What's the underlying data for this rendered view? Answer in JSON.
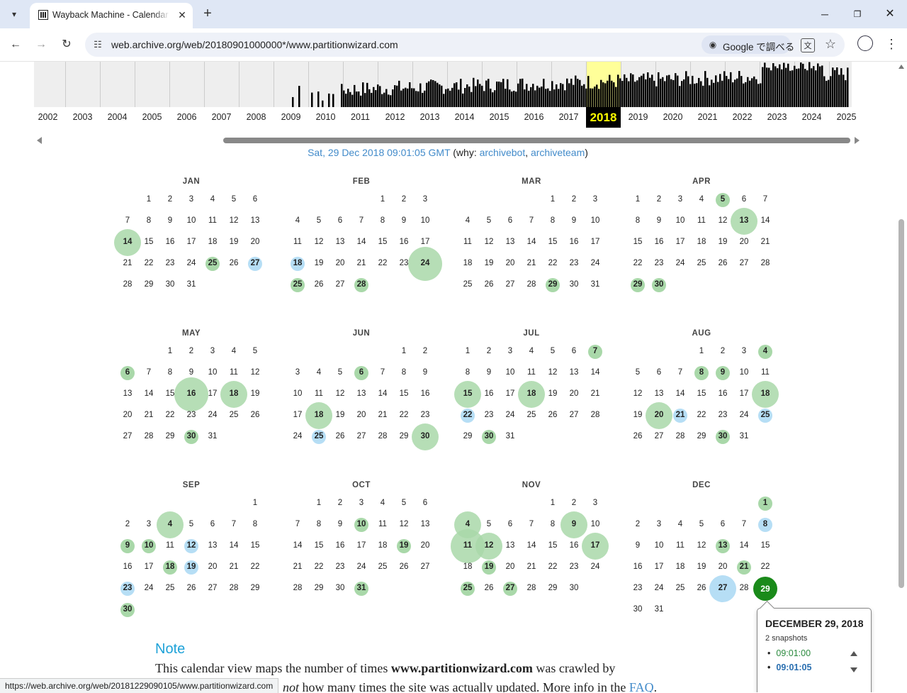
{
  "browser": {
    "tab_title": "Wayback Machine - Calendar of",
    "url": "web.archive.org/web/20180901000000*/www.partitionwizard.com",
    "lens_label": "Google で調べる",
    "status_url": "https://web.archive.org/web/20181229090105/www.partitionwizard.com"
  },
  "icons": {
    "tab_list": "▾",
    "close": "✕",
    "new_tab": "+",
    "minimize": "─",
    "maximize": "❐",
    "back": "←",
    "forward": "→",
    "reload": "↻",
    "site_info": "☷",
    "lens": "◉",
    "translate": "文",
    "star": "☆",
    "profile": "●",
    "menu": "⋮"
  },
  "timeline": {
    "years": [
      "2002",
      "2003",
      "2004",
      "2005",
      "2006",
      "2007",
      "2008",
      "2009",
      "2010",
      "2011",
      "2012",
      "2013",
      "2014",
      "2015",
      "2016",
      "2017",
      "2018",
      "2019",
      "2020",
      "2021",
      "2022",
      "2023",
      "2024",
      "2025"
    ],
    "selected_year": "2018",
    "highlight_color": "#ffff99"
  },
  "capture": {
    "datetime": "Sat, 29 Dec 2018 09:01:05 GMT",
    "why_open": " (why: ",
    "reason1": "archivebot",
    "sep": ", ",
    "reason2": "archiveteam",
    "why_close": ")"
  },
  "colors": {
    "green_bubble": "#a9d8a9",
    "blue_bubble": "#b6def5",
    "selected": "#1a8a1a"
  },
  "months": [
    {
      "name": "JAN",
      "first_weekday": 1,
      "days": 31,
      "snaps": {
        "14": [
          "g",
          2
        ],
        "25": [
          "g",
          1
        ],
        "27": [
          "b",
          1
        ]
      }
    },
    {
      "name": "FEB",
      "first_weekday": 4,
      "days": 28,
      "snaps": {
        "18": [
          "b",
          1
        ],
        "24": [
          "g",
          3
        ],
        "25": [
          "g",
          1
        ],
        "28": [
          "g",
          1
        ]
      }
    },
    {
      "name": "MAR",
      "first_weekday": 4,
      "days": 31,
      "snaps": {
        "29": [
          "g",
          1
        ]
      }
    },
    {
      "name": "APR",
      "first_weekday": 0,
      "days": 30,
      "snaps": {
        "5": [
          "g",
          1
        ],
        "13": [
          "g",
          2
        ],
        "29": [
          "g",
          1
        ],
        "30": [
          "g",
          1
        ]
      }
    },
    {
      "name": "MAY",
      "first_weekday": 2,
      "days": 31,
      "snaps": {
        "6": [
          "g",
          1
        ],
        "16": [
          "g",
          3
        ],
        "18": [
          "g",
          2
        ],
        "30": [
          "g",
          1
        ]
      }
    },
    {
      "name": "JUN",
      "first_weekday": 5,
      "days": 30,
      "snaps": {
        "6": [
          "g",
          1
        ],
        "18": [
          "g",
          2
        ],
        "25": [
          "b",
          1
        ],
        "30": [
          "g",
          2
        ]
      }
    },
    {
      "name": "JUL",
      "first_weekday": 0,
      "days": 31,
      "snaps": {
        "7": [
          "g",
          1
        ],
        "15": [
          "g",
          2
        ],
        "18": [
          "g",
          2
        ],
        "22": [
          "b",
          1
        ],
        "30": [
          "g",
          1
        ]
      }
    },
    {
      "name": "AUG",
      "first_weekday": 3,
      "days": 31,
      "snaps": {
        "4": [
          "g",
          1
        ],
        "8": [
          "g",
          1
        ],
        "9": [
          "g",
          1
        ],
        "18": [
          "g",
          2
        ],
        "20": [
          "g",
          2
        ],
        "21": [
          "b",
          1
        ],
        "25": [
          "b",
          1
        ],
        "30": [
          "g",
          1
        ]
      }
    },
    {
      "name": "SEP",
      "first_weekday": 6,
      "days": 30,
      "snaps": {
        "4": [
          "g",
          2
        ],
        "9": [
          "g",
          1
        ],
        "10": [
          "g",
          1
        ],
        "12": [
          "b",
          1
        ],
        "18": [
          "g",
          1
        ],
        "19": [
          "b",
          1
        ],
        "23": [
          "b",
          1
        ],
        "30": [
          "g",
          1
        ]
      }
    },
    {
      "name": "OCT",
      "first_weekday": 1,
      "days": 31,
      "snaps": {
        "10": [
          "g",
          1
        ],
        "19": [
          "g",
          1
        ],
        "31": [
          "g",
          1
        ]
      }
    },
    {
      "name": "NOV",
      "first_weekday": 4,
      "days": 30,
      "snaps": {
        "4": [
          "g",
          2
        ],
        "9": [
          "g",
          2
        ],
        "11": [
          "g",
          3
        ],
        "12": [
          "g",
          2
        ],
        "17": [
          "g",
          2
        ],
        "19": [
          "g",
          1
        ],
        "25": [
          "g",
          1
        ],
        "27": [
          "g",
          1
        ]
      }
    },
    {
      "name": "DEC",
      "first_weekday": 6,
      "days": 31,
      "snaps": {
        "1": [
          "g",
          1
        ],
        "8": [
          "b",
          1
        ],
        "13": [
          "g",
          1
        ],
        "21": [
          "g",
          1
        ],
        "27": [
          "b",
          2
        ],
        "29": [
          "s",
          2
        ]
      }
    }
  ],
  "tooltip": {
    "title": "DECEMBER 29, 2018",
    "count": "2 snapshots",
    "times": [
      "09:01:00",
      "09:01:05"
    ]
  },
  "note": {
    "title": "Note",
    "line1_a": "This calendar view maps the number of times ",
    "line1_b": "www.partitionwizard.com",
    "line1_c": " was crawled by",
    "line2_a": "not",
    "line2_b": " how many times the site was actually updated. More info in the ",
    "faq": "FAQ",
    "line2_c": "."
  }
}
